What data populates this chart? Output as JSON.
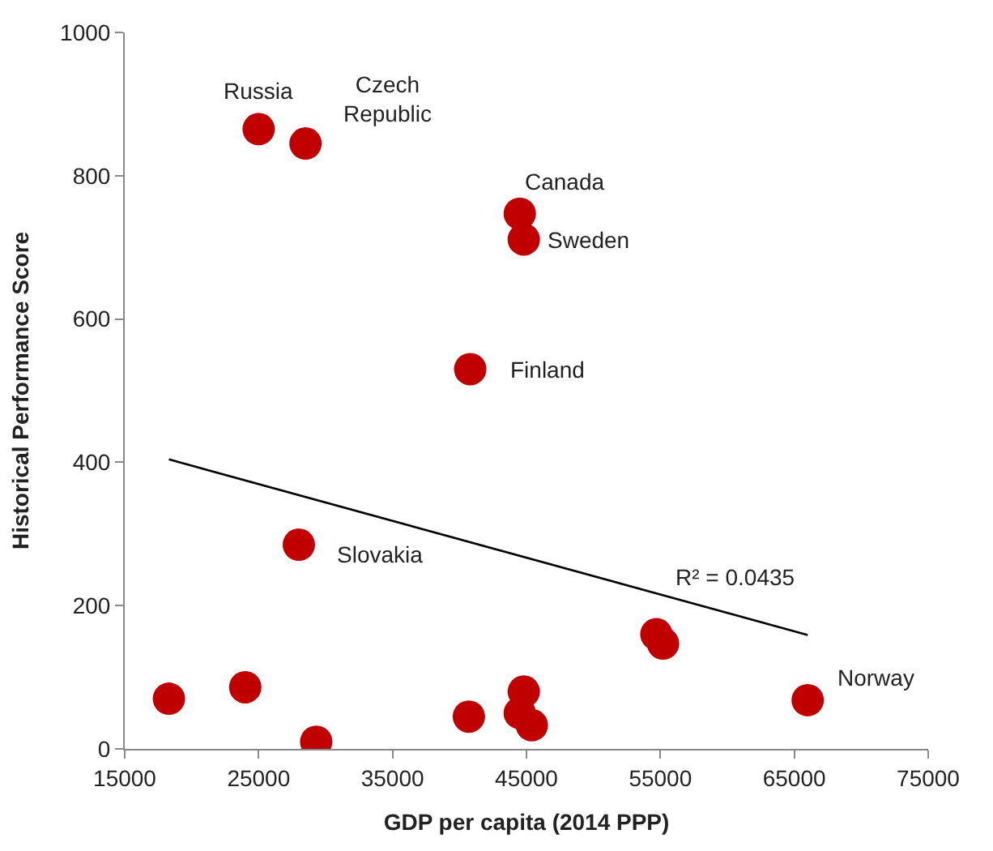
{
  "chart_data": {
    "type": "scatter",
    "xlabel": "GDP per capita (2014 PPP)",
    "ylabel": "Historical Performance Score",
    "xlim": [
      15000,
      75000
    ],
    "xticks": [
      15000,
      25000,
      35000,
      45000,
      55000,
      65000,
      75000
    ],
    "ylim": [
      0,
      1000
    ],
    "yticks": [
      0,
      200,
      400,
      600,
      800,
      1000
    ],
    "series": [
      {
        "color": "#c00000",
        "marker": "circle",
        "x": [
          25000,
          28500,
          44500,
          44800,
          40800,
          28000,
          66000,
          18300,
          24000,
          29300,
          40700,
          44800,
          44500,
          45400,
          54700,
          55200
        ],
        "values": [
          865,
          845,
          747,
          711,
          530,
          285,
          68,
          70,
          86,
          10,
          45,
          80,
          50,
          33,
          160,
          147
        ]
      },
      {
        "type": "line",
        "color": "#000000",
        "x": [
          18300,
          66000
        ],
        "values": [
          404,
          159
        ]
      }
    ],
    "annotations": [
      {
        "text": "Russia",
        "x": 25000,
        "y": 865
      },
      {
        "text": "Czech\nRepublic",
        "x": 28500,
        "y": 845
      },
      {
        "text": "Canada",
        "x": 44500,
        "y": 747
      },
      {
        "text": "Sweden",
        "x": 44800,
        "y": 711
      },
      {
        "text": "Finland",
        "x": 40800,
        "y": 530
      },
      {
        "text": "Slovakia",
        "x": 28000,
        "y": 285
      },
      {
        "text": "Norway",
        "x": 66000,
        "y": 68
      },
      {
        "text": "R² = 0.0435",
        "x": 60000,
        "y": 190
      }
    ]
  }
}
